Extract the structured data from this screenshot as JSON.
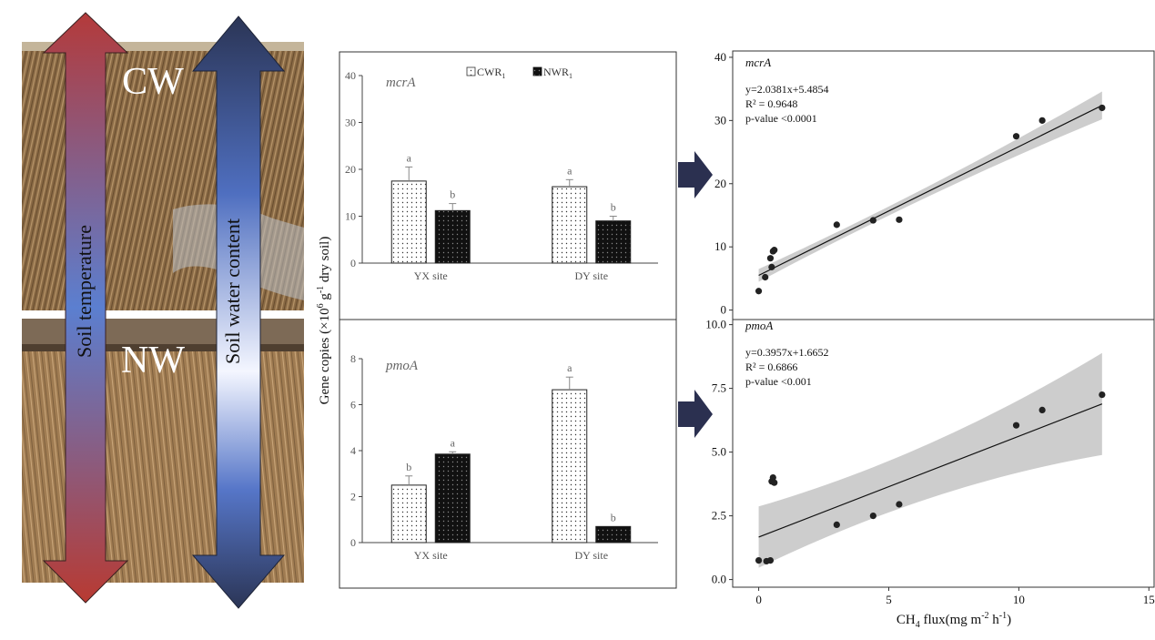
{
  "photo_labels": {
    "top": "CW",
    "bottom": "NW"
  },
  "arrow_labels": {
    "temperature": "Soil  temperature",
    "water": "Soil water content"
  },
  "colors": {
    "temp_arrow_top": "#b43a3a",
    "temp_arrow_mid": "#5b7fd0",
    "temp_arrow_bottom": "#c0392b",
    "water_arrow_end": "#2b3556",
    "water_arrow_mid": "#ffffff",
    "flow_arrow": "#2b3050",
    "ci_band": "#c8c8c8",
    "bar_dark": "#111111"
  },
  "bar_panel": {
    "ylabel_prefix": "Gene copies (×10",
    "ylabel_exp": "6",
    "ylabel_mid": " g",
    "ylabel_exp2": "-1",
    "ylabel_suffix": " dry soil)",
    "legend": [
      {
        "label": "CWR",
        "sub": "1",
        "pattern": "dots"
      },
      {
        "label": "NWR",
        "sub": "1",
        "pattern": "solid"
      }
    ]
  },
  "scatter_panel": {
    "xlabel_main": "CH",
    "xlabel_sub": "4",
    "xlabel_rest": "  flux(mg m",
    "xlabel_exp1": "-2",
    "xlabel_mid": " h",
    "xlabel_exp2": "-1",
    "xlabel_end": ")"
  },
  "chart_data": [
    {
      "type": "bar",
      "title": "mcrA",
      "categories": [
        "YX site",
        "DY site"
      ],
      "series": [
        {
          "name": "CWR1",
          "values": [
            17.5,
            16.3
          ],
          "errors": [
            3.0,
            1.5
          ],
          "letters": [
            "a",
            "a"
          ]
        },
        {
          "name": "NWR1",
          "values": [
            11.2,
            9.0
          ],
          "errors": [
            1.5,
            1.0
          ],
          "letters": [
            "b",
            "b"
          ]
        }
      ],
      "ylim": [
        0,
        40
      ],
      "yticks": [
        0,
        10,
        20,
        30,
        40
      ]
    },
    {
      "type": "bar",
      "title": "pmoA",
      "categories": [
        "YX site",
        "DY site"
      ],
      "series": [
        {
          "name": "CWR1",
          "values": [
            2.5,
            6.65
          ],
          "errors": [
            0.4,
            0.55
          ],
          "letters": [
            "b",
            "a"
          ]
        },
        {
          "name": "NWR1",
          "values": [
            3.85,
            0.7
          ],
          "errors": [
            0.1,
            0.0
          ],
          "letters": [
            "a",
            "b"
          ]
        }
      ],
      "ylim": [
        0,
        8
      ],
      "yticks": [
        0,
        2,
        4,
        6,
        8
      ]
    },
    {
      "type": "scatter",
      "title": "mcrA",
      "equation": "y=2.0381x+5.4854",
      "r2": "R² = 0.9648",
      "pvalue": "p-value <0.0001",
      "slope": 2.0381,
      "intercept": 5.4854,
      "ci_halfwidth": [
        0.7,
        2.2
      ],
      "x": [
        0,
        0.25,
        0.45,
        0.5,
        0.55,
        0.6,
        3.0,
        4.4,
        5.4,
        9.9,
        10.9,
        13.2
      ],
      "y": [
        3.0,
        5.2,
        8.2,
        6.8,
        9.3,
        9.5,
        13.5,
        14.2,
        14.3,
        27.5,
        30.0,
        32.0
      ],
      "xlim": [
        -1,
        15.2
      ],
      "ylim": [
        -1.5,
        41
      ],
      "xticks": [
        0,
        5,
        10,
        15
      ],
      "yticks": [
        0,
        10,
        20,
        30,
        40
      ]
    },
    {
      "type": "scatter",
      "title": "pmoA",
      "equation": "y=0.3957x+1.6652",
      "r2": "R² = 0.6866",
      "pvalue": "p-value <0.001",
      "slope": 0.3957,
      "intercept": 1.6652,
      "ci_halfwidth": [
        1.0,
        2.0
      ],
      "x": [
        0,
        0.3,
        0.45,
        0.5,
        0.55,
        0.6,
        3.0,
        4.4,
        5.4,
        9.9,
        10.9,
        13.2
      ],
      "y": [
        0.75,
        0.72,
        0.75,
        3.85,
        4.0,
        3.8,
        2.15,
        2.5,
        2.95,
        6.05,
        6.65,
        7.25
      ],
      "xlim": [
        -1,
        15.2
      ],
      "ylim": [
        -0.3,
        10.2
      ],
      "xticks": [
        0,
        5,
        10,
        15
      ],
      "yticks": [
        0.0,
        2.5,
        5.0,
        7.5,
        10.0
      ]
    }
  ]
}
